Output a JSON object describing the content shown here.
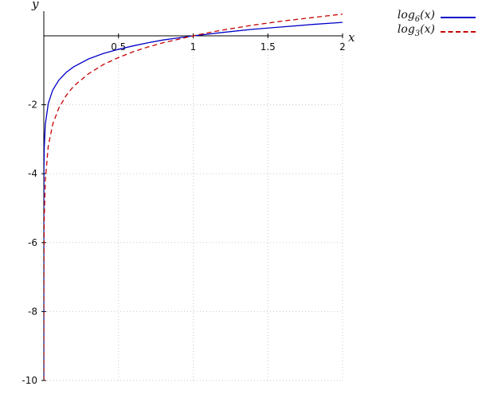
{
  "chart_data": {
    "type": "line",
    "title": "",
    "xlabel": "x",
    "ylabel": "y",
    "xlim": [
      0,
      2
    ],
    "ylim": [
      -10,
      0.72
    ],
    "grid": true,
    "legend_position": "top-right-outside",
    "x_tick_labels": [
      "0.5",
      "1",
      "1.5",
      "2"
    ],
    "x_tick_values": [
      0.5,
      1,
      1.5,
      2
    ],
    "y_tick_labels": [
      "-2",
      "-4",
      "-6",
      "-8",
      "-10"
    ],
    "y_tick_values": [
      -2,
      -4,
      -6,
      -8,
      -10
    ],
    "x": [
      1.65e-08,
      2e-07,
      2e-06,
      1.69e-05,
      0.0002,
      0.001,
      0.003,
      0.01,
      0.03,
      0.06,
      0.1,
      0.15,
      0.2,
      0.3,
      0.4,
      0.5,
      0.6,
      0.7,
      0.8,
      0.9,
      1.0,
      1.1,
      1.2,
      1.4,
      1.6,
      1.8,
      2.0
    ],
    "series": [
      {
        "name": "log6(x)",
        "color": "#0000c8",
        "dash": "solid",
        "y": [
          -10,
          -8.61,
          -7.32,
          -6.13,
          -4.75,
          -3.86,
          -3.24,
          -2.57,
          -1.96,
          -1.57,
          -1.29,
          -1.06,
          -0.9,
          -0.67,
          -0.51,
          -0.39,
          -0.29,
          -0.2,
          -0.12,
          -0.06,
          0,
          0.05,
          0.1,
          0.19,
          0.26,
          0.33,
          0.39
        ]
      },
      {
        "name": "log3(x)",
        "color": "#c80000",
        "dash": "dashed",
        "y": [
          -10,
          -10,
          -10,
          -10,
          -7.75,
          -6.29,
          -5.29,
          -4.19,
          -3.19,
          -2.56,
          -2.1,
          -1.73,
          -1.46,
          -1.1,
          -0.83,
          -0.63,
          -0.46,
          -0.32,
          -0.2,
          -0.1,
          0,
          0.09,
          0.17,
          0.31,
          0.43,
          0.53,
          0.63
        ]
      }
    ]
  },
  "legend": {
    "items": [
      {
        "prefix": "log",
        "sub": "6",
        "suffix": "(x)"
      },
      {
        "prefix": "log",
        "sub": "3",
        "suffix": "(x)"
      }
    ]
  },
  "colors": {
    "background": "#ffffff",
    "axis": "#000000",
    "grid": "#c9c9c9",
    "series1": "#0000c8",
    "series2": "#c80000"
  }
}
